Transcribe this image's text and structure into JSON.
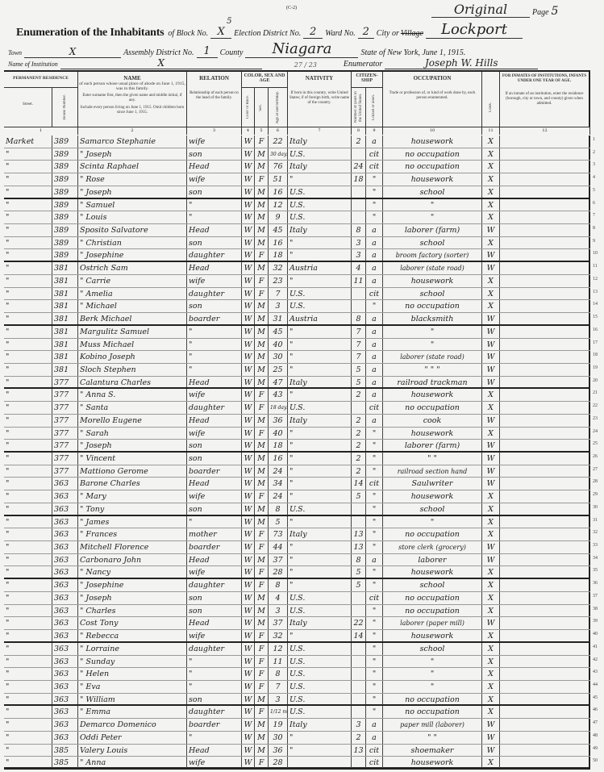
{
  "header": {
    "form_code": "(C-2)",
    "original": "Original",
    "page_label": "Page",
    "page": "5",
    "title": "Enumeration of the Inhabitants",
    "of_block": "of Block No.",
    "block": "X",
    "block_note": "5",
    "election_label": "Election District No.",
    "election": "2",
    "ward_label": "Ward No.",
    "ward": "2",
    "city_label": "City or",
    "village_struck": "Village",
    "city": "Lockport",
    "town_label": "Town",
    "town": "X",
    "assembly_label": "Assembly District No.",
    "assembly": "1",
    "county_label": "County",
    "county": "Niagara",
    "state_line": "State of New York, June 1, 1915.",
    "institution_label": "Name of Institution",
    "institution": "X",
    "stray_note": "27 / 23",
    "enumerator_label": "Enumerator",
    "enumerator": "Joseph W. Hills"
  },
  "columns": {
    "residence": "PERMANENT RESIDENCE",
    "street": "Street.",
    "house": "House Number.",
    "name": "NAME",
    "name_desc": "of each person whose usual place of abode on June 1, 1915, was in this family.",
    "name_inst1": "Enter surname first, then the given name and middle initial, if any.",
    "name_inst2": "Include every person living on June 1, 1915. Omit children born since June 1, 1915.",
    "relation": "RELATION",
    "relation_desc": "Relationship of each person to the head of the family.",
    "csa": "COLOR, SEX AND AGE",
    "color": "Color or Race.",
    "sex": "Sex.",
    "age": "Age at last birthday.",
    "nativity": "NATIVITY",
    "nativity_desc": "If born in this country, write United States; if of foreign birth, write name of the country.",
    "citizenship": "CITIZEN-SHIP",
    "years": "Number of years in the United States.",
    "citizen": "Citizen or alien.",
    "occupation": "OCCUPATION",
    "occupation_desc": "Trade or profession of, or kind of work done by, each person enumerated.",
    "class": "Class.",
    "inmates": "FOR INMATES OF INSTITUTIONS, INFANTS UNDER ONE YEAR OF AGE.",
    "inmates_desc": "If an inmate of an institution, enter the residence (borough, city or town, and county) given when admitted.",
    "numbers": [
      "1",
      "2",
      "3",
      "4",
      "5",
      "6",
      "7",
      "8",
      "9",
      "10",
      "11",
      "12"
    ]
  },
  "rows": [
    [
      "Market",
      "389",
      "Samarco Stephanie",
      "wife",
      "W",
      "F",
      "22",
      "Italy",
      "2",
      "a",
      "housework",
      "X"
    ],
    [
      "\"",
      "389",
      "\" Joseph",
      "son",
      "W",
      "M",
      "30 days",
      "U.S.",
      "",
      "cit",
      "no occupation",
      "X"
    ],
    [
      "\"",
      "389",
      "Scinta Raphael",
      "Head",
      "W",
      "M",
      "76",
      "Italy",
      "24",
      "cit",
      "no occupation",
      "X"
    ],
    [
      "\"",
      "389",
      "\" Rose",
      "wife",
      "W",
      "F",
      "51",
      "\"",
      "18",
      "\"",
      "housework",
      "X"
    ],
    [
      "\"",
      "389",
      "\" Joseph",
      "son",
      "W",
      "M",
      "16",
      "U.S.",
      "",
      "\"",
      "school",
      "X"
    ],
    [
      "\"",
      "389",
      "\" Samuel",
      "\"",
      "W",
      "M",
      "12",
      "U.S.",
      "",
      "\"",
      "\"",
      "X"
    ],
    [
      "\"",
      "389",
      "\" Louis",
      "\"",
      "W",
      "M",
      "9",
      "U.S.",
      "",
      "\"",
      "\"",
      "X"
    ],
    [
      "\"",
      "389",
      "Sposito Salvatore",
      "Head",
      "W",
      "M",
      "45",
      "Italy",
      "8",
      "a",
      "laborer (farm)",
      "W"
    ],
    [
      "\"",
      "389",
      "\" Christian",
      "son",
      "W",
      "M",
      "16",
      "\"",
      "3",
      "a",
      "school",
      "X"
    ],
    [
      "\"",
      "389",
      "\" Josephine",
      "daughter",
      "W",
      "F",
      "18",
      "\"",
      "3",
      "a",
      "broom factory (sorter)",
      "W"
    ],
    [
      "\"",
      "381",
      "Ostrich Sam",
      "Head",
      "W",
      "M",
      "32",
      "Austria",
      "4",
      "a",
      "laborer (state road)",
      "W"
    ],
    [
      "\"",
      "381",
      "\" Carrie",
      "wife",
      "W",
      "F",
      "23",
      "\"",
      "11",
      "a",
      "housework",
      "X"
    ],
    [
      "\"",
      "381",
      "\" Amelia",
      "daughter",
      "W",
      "F",
      "7",
      "U.S.",
      "",
      "cit",
      "school",
      "X"
    ],
    [
      "\"",
      "381",
      "\" Michael",
      "son",
      "W",
      "M",
      "3",
      "U.S.",
      "",
      "\"",
      "no occupation",
      "X"
    ],
    [
      "\"",
      "381",
      "Berk Michael",
      "boarder",
      "W",
      "M",
      "31",
      "Austria",
      "8",
      "a",
      "blacksmith",
      "W"
    ],
    [
      "\"",
      "381",
      "Margulitz Samuel",
      "\"",
      "W",
      "M",
      "45",
      "\"",
      "7",
      "a",
      "\"",
      "W"
    ],
    [
      "\"",
      "381",
      "Muss Michael",
      "\"",
      "W",
      "M",
      "40",
      "\"",
      "7",
      "a",
      "\"",
      "W"
    ],
    [
      "\"",
      "381",
      "Kobino Joseph",
      "\"",
      "W",
      "M",
      "30",
      "\"",
      "7",
      "a",
      "laborer (state road)",
      "W"
    ],
    [
      "\"",
      "381",
      "Sloch Stephen",
      "\"",
      "W",
      "M",
      "25",
      "\"",
      "5",
      "a",
      "\"  \"  \"",
      "W"
    ],
    [
      "\"",
      "377",
      "Calantura Charles",
      "Head",
      "W",
      "M",
      "47",
      "Italy",
      "5",
      "a",
      "railroad trackman",
      "W"
    ],
    [
      "\"",
      "377",
      "\" Anna S.",
      "wife",
      "W",
      "F",
      "43",
      "\"",
      "2",
      "a",
      "housework",
      "X"
    ],
    [
      "\"",
      "377",
      "\" Santa",
      "daughter",
      "W",
      "F",
      "18 days",
      "U.S.",
      "",
      "cit",
      "no occupation",
      "X"
    ],
    [
      "\"",
      "377",
      "Morello Eugene",
      "Head",
      "W",
      "M",
      "36",
      "Italy",
      "2",
      "a",
      "cook",
      "W"
    ],
    [
      "\"",
      "377",
      "\" Sarah",
      "wife",
      "W",
      "F",
      "40",
      "\"",
      "2",
      "\"",
      "housework",
      "X"
    ],
    [
      "\"",
      "377",
      "\" Joseph",
      "son",
      "W",
      "M",
      "18",
      "\"",
      "2",
      "\"",
      "laborer (farm)",
      "W"
    ],
    [
      "\"",
      "377",
      "\" Vincent",
      "son",
      "W",
      "M",
      "16",
      "\"",
      "2",
      "\"",
      "\"  \"",
      "W"
    ],
    [
      "\"",
      "377",
      "Mattiono Gerome",
      "boarder",
      "W",
      "M",
      "24",
      "\"",
      "2",
      "\"",
      "railroad section hand",
      "W"
    ],
    [
      "\"",
      "363",
      "Barone Charles",
      "Head",
      "W",
      "M",
      "34",
      "\"",
      "14",
      "cit",
      "Saulwriter",
      "W"
    ],
    [
      "\"",
      "363",
      "\" Mary",
      "wife",
      "W",
      "F",
      "24",
      "\"",
      "5",
      "\"",
      "housework",
      "X"
    ],
    [
      "\"",
      "363",
      "\" Tony",
      "son",
      "W",
      "M",
      "8",
      "U.S.",
      "",
      "\"",
      "school",
      "X"
    ],
    [
      "\"",
      "363",
      "\" James",
      "\"",
      "W",
      "M",
      "5",
      "\"",
      "",
      "\"",
      "\"",
      "X"
    ],
    [
      "\"",
      "363",
      "\" Frances",
      "mother",
      "W",
      "F",
      "73",
      "Italy",
      "13",
      "\"",
      "no occupation",
      "X"
    ],
    [
      "\"",
      "363",
      "Mitchell Florence",
      "boarder",
      "W",
      "F",
      "44",
      "\"",
      "13",
      "\"",
      "store clerk (grocery)",
      "W"
    ],
    [
      "\"",
      "363",
      "Carbonaro John",
      "Head",
      "W",
      "M",
      "37",
      "\"",
      "8",
      "a",
      "laborer",
      "W"
    ],
    [
      "\"",
      "363",
      "\" Nancy",
      "wife",
      "W",
      "F",
      "28",
      "\"",
      "5",
      "\"",
      "housework",
      "X"
    ],
    [
      "\"",
      "363",
      "\" Josephine",
      "daughter",
      "W",
      "F",
      "8",
      "\"",
      "5",
      "\"",
      "school",
      "X"
    ],
    [
      "\"",
      "363",
      "\" Joseph",
      "son",
      "W",
      "M",
      "4",
      "U.S.",
      "",
      "cit",
      "no occupation",
      "X"
    ],
    [
      "\"",
      "363",
      "\" Charles",
      "son",
      "W",
      "M",
      "3",
      "U.S.",
      "",
      "\"",
      "no occupation",
      "X"
    ],
    [
      "\"",
      "363",
      "Cost Tony",
      "Head",
      "W",
      "M",
      "37",
      "Italy",
      "22",
      "\"",
      "laborer (paper mill)",
      "W"
    ],
    [
      "\"",
      "363",
      "\" Rebecca",
      "wife",
      "W",
      "F",
      "32",
      "\"",
      "14",
      "\"",
      "housework",
      "X"
    ],
    [
      "\"",
      "363",
      "\" Lorraine",
      "daughter",
      "W",
      "F",
      "12",
      "U.S.",
      "",
      "\"",
      "school",
      "X"
    ],
    [
      "\"",
      "363",
      "\" Sunday",
      "\"",
      "W",
      "F",
      "11",
      "U.S.",
      "",
      "\"",
      "\"",
      "X"
    ],
    [
      "\"",
      "363",
      "\" Helen",
      "\"",
      "W",
      "F",
      "8",
      "U.S.",
      "",
      "\"",
      "\"",
      "X"
    ],
    [
      "\"",
      "363",
      "\" Eva",
      "\"",
      "W",
      "F",
      "7",
      "U.S.",
      "",
      "\"",
      "\"",
      "X"
    ],
    [
      "\"",
      "363",
      "\" William",
      "son",
      "W",
      "M",
      "3",
      "U.S.",
      "",
      "\"",
      "no occupation",
      "X"
    ],
    [
      "\"",
      "363",
      "\" Emma",
      "daughter",
      "W",
      "F",
      "1/12 mo",
      "U.S.",
      "",
      "\"",
      "no occupation",
      "X"
    ],
    [
      "\"",
      "363",
      "Demarco Domenico",
      "boarder",
      "W",
      "M",
      "19",
      "Italy",
      "3",
      "a",
      "paper mill (laborer)",
      "W"
    ],
    [
      "\"",
      "363",
      "Oddi Peter",
      "\"",
      "W",
      "M",
      "30",
      "\"",
      "2",
      "a",
      "\"  \"",
      "W"
    ],
    [
      "\"",
      "385",
      "Valery Louis",
      "Head",
      "W",
      "M",
      "36",
      "\"",
      "13",
      "cit",
      "shoemaker",
      "W"
    ],
    [
      "\"",
      "385",
      "\" Anna",
      "wife",
      "W",
      "F",
      "28",
      "",
      "",
      "cit",
      "housework",
      "X"
    ]
  ]
}
